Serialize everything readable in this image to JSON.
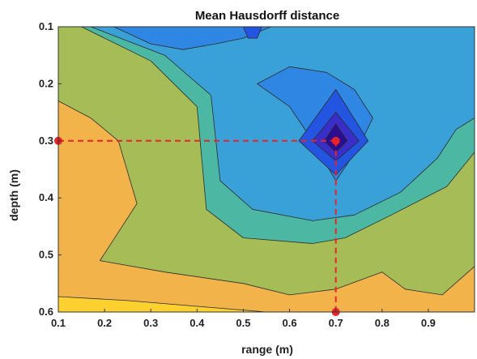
{
  "chart_data": {
    "type": "contour",
    "title": "Mean Hausdorff distance",
    "xlabel": "range (m)",
    "ylabel": "depth (m)",
    "xlim": [
      0.1,
      1.0
    ],
    "ylim": [
      0.1,
      0.6
    ],
    "y_reversed": true,
    "xticks": [
      "0.1",
      "0.2",
      "0.3",
      "0.4",
      "0.5",
      "0.6",
      "0.7",
      "0.8",
      "0.9"
    ],
    "yticks": [
      "0.1",
      "0.2",
      "0.3",
      "0.4",
      "0.5",
      "0.6"
    ],
    "levels": [
      {
        "color": "#f1b34a",
        "region": [
          [
            0.1,
            0.1
          ],
          [
            1.0,
            0.1
          ],
          [
            1.0,
            0.6
          ],
          [
            0.1,
            0.6
          ]
        ]
      },
      {
        "color": "#a6bd57",
        "region": [
          [
            0.1,
            0.1
          ],
          [
            1.0,
            0.1
          ],
          [
            1.0,
            0.6
          ],
          [
            0.58,
            0.6
          ],
          [
            0.5,
            0.59
          ],
          [
            0.4,
            0.58
          ],
          [
            0.3,
            0.57
          ],
          [
            0.2,
            0.55
          ],
          [
            0.1,
            0.56
          ],
          [
            0.1,
            0.6
          ],
          [
            0.1,
            0.1
          ]
        ]
      },
      {
        "color": "#f1b34a",
        "region": [
          [
            0.1,
            0.23
          ],
          [
            0.17,
            0.26
          ],
          [
            0.23,
            0.3
          ],
          [
            0.27,
            0.41
          ],
          [
            0.19,
            0.51
          ],
          [
            0.33,
            0.53
          ],
          [
            0.5,
            0.55
          ],
          [
            0.6,
            0.57
          ],
          [
            0.7,
            0.56
          ],
          [
            0.8,
            0.53
          ],
          [
            0.85,
            0.56
          ],
          [
            0.93,
            0.57
          ],
          [
            1.0,
            0.52
          ],
          [
            1.0,
            0.6
          ],
          [
            0.1,
            0.6
          ]
        ]
      },
      {
        "color": "#fcd12f",
        "region": [
          [
            0.1,
            0.573
          ],
          [
            0.25,
            0.58
          ],
          [
            0.4,
            0.59
          ],
          [
            0.55,
            0.6
          ],
          [
            0.1,
            0.6
          ]
        ]
      },
      {
        "color": "#4cb8a3",
        "region": [
          [
            0.15,
            0.1
          ],
          [
            0.3,
            0.16
          ],
          [
            0.4,
            0.24
          ],
          [
            0.42,
            0.42
          ],
          [
            0.5,
            0.47
          ],
          [
            0.65,
            0.48
          ],
          [
            0.72,
            0.47
          ],
          [
            0.82,
            0.43
          ],
          [
            0.94,
            0.38
          ],
          [
            1.0,
            0.32
          ],
          [
            1.0,
            0.1
          ]
        ]
      },
      {
        "color": "#3aa0d8",
        "region": [
          [
            0.17,
            0.1
          ],
          [
            0.33,
            0.15
          ],
          [
            0.43,
            0.22
          ],
          [
            0.45,
            0.37
          ],
          [
            0.52,
            0.42
          ],
          [
            0.65,
            0.44
          ],
          [
            0.74,
            0.43
          ],
          [
            0.84,
            0.39
          ],
          [
            0.92,
            0.33
          ],
          [
            0.96,
            0.28
          ],
          [
            1.0,
            0.26
          ],
          [
            1.0,
            0.1
          ]
        ]
      },
      {
        "color": "#2f86e3",
        "region": [
          [
            0.22,
            0.1
          ],
          [
            0.3,
            0.13
          ],
          [
            0.37,
            0.14
          ],
          [
            0.44,
            0.13
          ],
          [
            0.5,
            0.12
          ],
          [
            0.56,
            0.1
          ]
        ]
      },
      {
        "color": "#2f86e3",
        "region": [
          [
            0.53,
            0.2
          ],
          [
            0.6,
            0.24
          ],
          [
            0.65,
            0.3
          ],
          [
            0.7,
            0.37
          ],
          [
            0.75,
            0.31
          ],
          [
            0.78,
            0.26
          ],
          [
            0.74,
            0.21
          ],
          [
            0.68,
            0.18
          ],
          [
            0.6,
            0.17
          ]
        ]
      },
      {
        "color": "#2355e0",
        "region": [
          [
            0.5,
            0.1
          ],
          [
            0.54,
            0.1
          ],
          [
            0.53,
            0.12
          ],
          [
            0.51,
            0.12
          ]
        ]
      },
      {
        "color": "#2355e0",
        "region": [
          [
            0.62,
            0.3
          ],
          [
            0.7,
            0.21
          ],
          [
            0.77,
            0.3
          ],
          [
            0.7,
            0.36
          ]
        ]
      },
      {
        "color": "#3a2ec9",
        "region": [
          [
            0.65,
            0.3
          ],
          [
            0.7,
            0.25
          ],
          [
            0.75,
            0.3
          ],
          [
            0.7,
            0.335
          ]
        ]
      },
      {
        "color": "#2a0e8f",
        "region": [
          [
            0.675,
            0.3
          ],
          [
            0.7,
            0.27
          ],
          [
            0.725,
            0.3
          ],
          [
            0.7,
            0.32
          ]
        ]
      }
    ],
    "highlight": {
      "x": 0.7,
      "y": 0.3,
      "color": "#e8232a"
    }
  }
}
